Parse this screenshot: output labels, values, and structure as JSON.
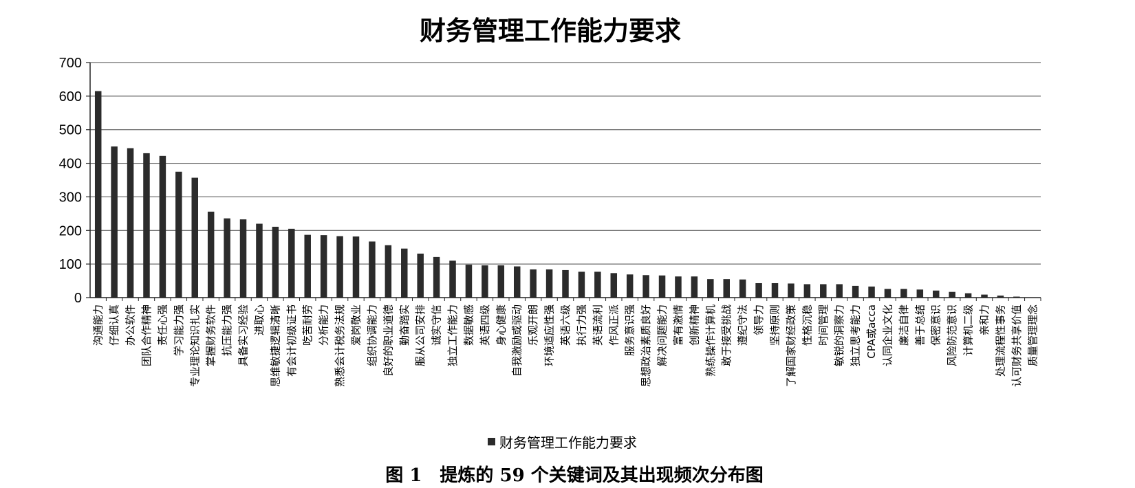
{
  "chart_data": {
    "type": "bar",
    "title": "财务管理工作能力要求",
    "xlabel": "",
    "ylabel": "",
    "ylim": [
      0,
      700
    ],
    "yticks": [
      0,
      100,
      200,
      300,
      400,
      500,
      600,
      700
    ],
    "grid": true,
    "legend_position": "bottom",
    "bar_color": "#2b2b2b",
    "series": [
      {
        "name": "财务管理工作能力要求"
      }
    ],
    "categories": [
      "沟通能力",
      "仔细认真",
      "办公软件",
      "团队合作精神",
      "责任心强",
      "学习能力强",
      "专业理论知识扎实",
      "掌握财务软件",
      "抗压能力强",
      "具备实习经验",
      "进取心",
      "思维敏捷逻辑清晰",
      "有会计初级证书",
      "吃苦耐劳",
      "分析能力",
      "熟悉会计税务法规",
      "爱岗敬业",
      "组织协调能力",
      "良好的职业道德",
      "勤奋踏实",
      "服从公司安排",
      "诚实守信",
      "独立工作能力",
      "数据敏感",
      "英语四级",
      "身心健康",
      "自我激励或驱动",
      "乐观开朗",
      "环境适应性强",
      "英语六级",
      "执行力强",
      "英语流利",
      "作风正派",
      "服务意识强",
      "思想政治素质良好",
      "解决问题能力",
      "富有激情",
      "创新精神",
      "熟练操作计算机",
      "敢于接受挑战",
      "遵纪守法",
      "领导力",
      "坚持原则",
      "了解国家财经政策",
      "性格沉稳",
      "时间管理",
      "敏锐的洞察力",
      "独立思考能力",
      "CPA或acca",
      "认同企业文化",
      "廉洁自律",
      "善于总结",
      "保密意识",
      "风险防范意识",
      "计算机二级",
      "亲和力",
      "处理流程性事务",
      "认可财务共享价值",
      "质量管理理念"
    ],
    "values": [
      615,
      450,
      445,
      430,
      422,
      375,
      357,
      256,
      236,
      233,
      220,
      211,
      205,
      187,
      186,
      183,
      182,
      167,
      156,
      146,
      131,
      121,
      110,
      98,
      96,
      96,
      93,
      84,
      84,
      82,
      77,
      77,
      73,
      69,
      67,
      66,
      63,
      63,
      55,
      55,
      54,
      43,
      43,
      42,
      40,
      40,
      40,
      35,
      33,
      26,
      26,
      24,
      21,
      17,
      13,
      9,
      6,
      3,
      1
    ]
  },
  "caption": "图 1　提炼的 59 个关键词及其出现频次分布图"
}
